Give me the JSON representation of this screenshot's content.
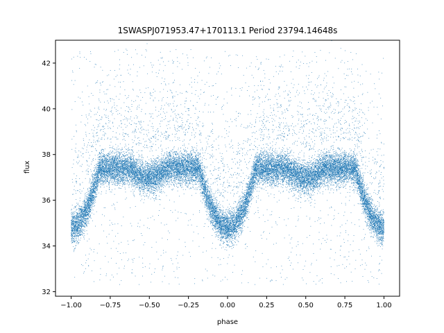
{
  "chart_data": {
    "type": "scatter",
    "title": "1SWASPJ071953.47+170113.1 Period 23794.14648s",
    "xlabel": "phase",
    "ylabel": "flux",
    "xlim": [
      -1.1,
      1.1
    ],
    "ylim": [
      31.8,
      43.0
    ],
    "x_ticks": [
      -1.0,
      -0.75,
      -0.5,
      -0.25,
      0.0,
      0.25,
      0.5,
      0.75,
      1.0
    ],
    "x_tick_labels": [
      "−1.00",
      "−0.75",
      "−0.50",
      "−0.25",
      "0.00",
      "0.25",
      "0.50",
      "0.75",
      "1.00"
    ],
    "y_ticks": [
      32,
      34,
      36,
      38,
      40,
      42
    ],
    "y_tick_labels": [
      "32",
      "34",
      "36",
      "38",
      "40",
      "42"
    ],
    "grid": false,
    "marker_color": "#1f77b4",
    "series": [
      {
        "phase_range": [
          -1.0,
          1.0
        ],
        "baseline_flux": 37.4,
        "scatter_sd": 0.35,
        "primary_eclipse": {
          "phase": 0.0,
          "min_flux": 34.8,
          "half_width": 0.18
        },
        "secondary_dip": {
          "phase": 0.5,
          "min_flux": 37.0,
          "half_width": 0.12
        },
        "outlier_band": [
          32.3,
          42.6
        ],
        "point_count": 24000
      }
    ]
  }
}
